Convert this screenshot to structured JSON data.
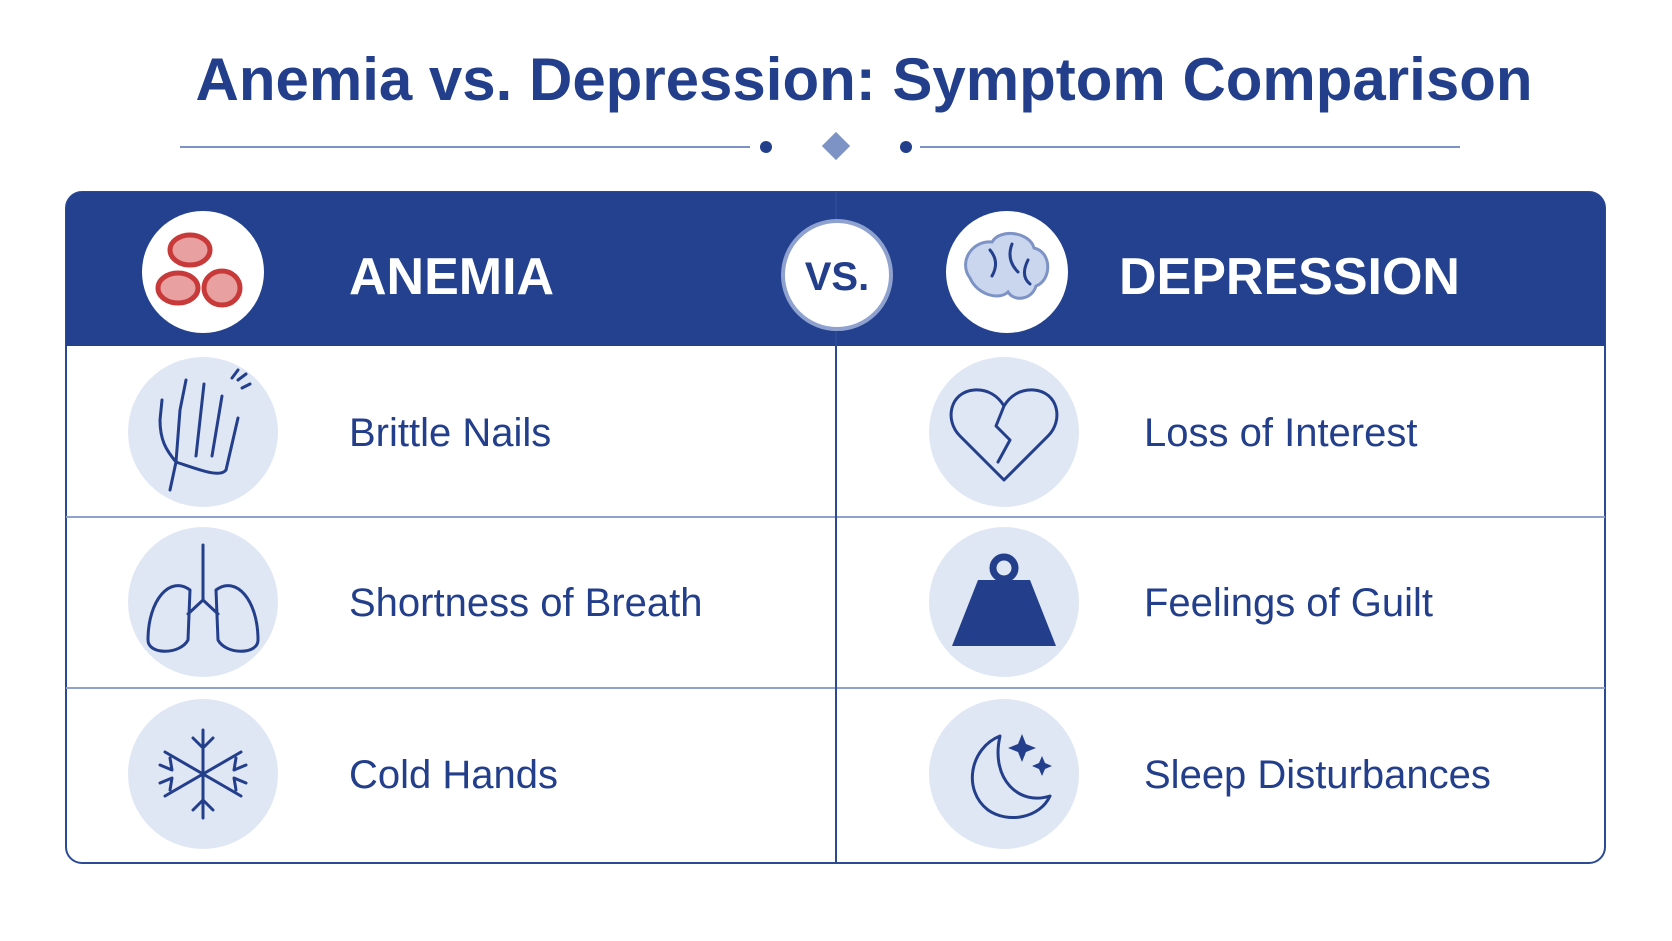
{
  "title": "Anemia vs. Depression: Symptom Comparison",
  "header": {
    "left": "ANEMIA",
    "vs": "VS.",
    "right": "DEPRESSION"
  },
  "rows": [
    {
      "left": "Brittle Nails",
      "right": "Loss of Interest"
    },
    {
      "left": "Shortness of Breath",
      "right": "Feelings of Guilt"
    },
    {
      "left": "Cold Hands",
      "right": "Sleep Disturbances"
    }
  ]
}
